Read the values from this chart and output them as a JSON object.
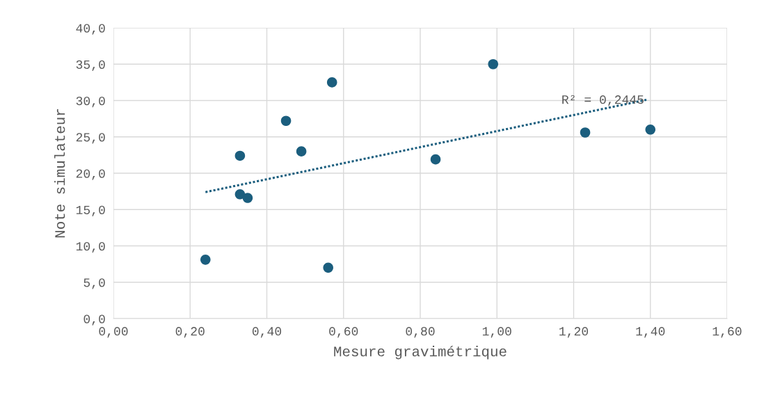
{
  "chart_data": {
    "type": "scatter",
    "xlabel": "Mesure gravimétrique",
    "ylabel": "Note simulateur",
    "series": [
      {
        "color": "#1b5e7e",
        "marker": "circle",
        "x": [
          0.24,
          0.33,
          0.33,
          0.35,
          0.45,
          0.49,
          0.56,
          0.57,
          0.84,
          0.99,
          1.23,
          1.4
        ],
        "values": [
          8.1,
          17.1,
          22.4,
          16.6,
          27.2,
          23.0,
          7.0,
          32.5,
          21.9,
          35.0,
          25.6,
          26.0
        ]
      },
      {
        "type": "line",
        "color": "#1b5e7e",
        "line_style": "dotted",
        "marker": "none",
        "x": [
          0.24,
          1.39
        ],
        "values": [
          17.4,
          30.1
        ]
      }
    ],
    "annotations": [
      "R² = 0,2445"
    ],
    "xlim": [
      0,
      1.6
    ],
    "ylim": [
      0,
      40
    ],
    "xticks": [
      {
        "value": 0,
        "label": "0,00"
      },
      {
        "value": 0.2,
        "label": "0,20"
      },
      {
        "value": 0.4,
        "label": "0,40"
      },
      {
        "value": 0.6,
        "label": "0,60"
      },
      {
        "value": 0.8,
        "label": "0,80"
      },
      {
        "value": 1.0,
        "label": "1,00"
      },
      {
        "value": 1.2,
        "label": "1,20"
      },
      {
        "value": 1.4,
        "label": "1,40"
      },
      {
        "value": 1.6,
        "label": "1,60"
      }
    ],
    "yticks": [
      {
        "value": 0,
        "label": "0,0"
      },
      {
        "value": 5,
        "label": "5,0"
      },
      {
        "value": 10,
        "label": "10,0"
      },
      {
        "value": 15,
        "label": "15,0"
      },
      {
        "value": 20,
        "label": "20,0"
      },
      {
        "value": 25,
        "label": "25,0"
      },
      {
        "value": 30,
        "label": "30,0"
      },
      {
        "value": 35,
        "label": "35,0"
      },
      {
        "value": 40,
        "label": "40,0"
      }
    ],
    "grid": true,
    "legend": false
  }
}
